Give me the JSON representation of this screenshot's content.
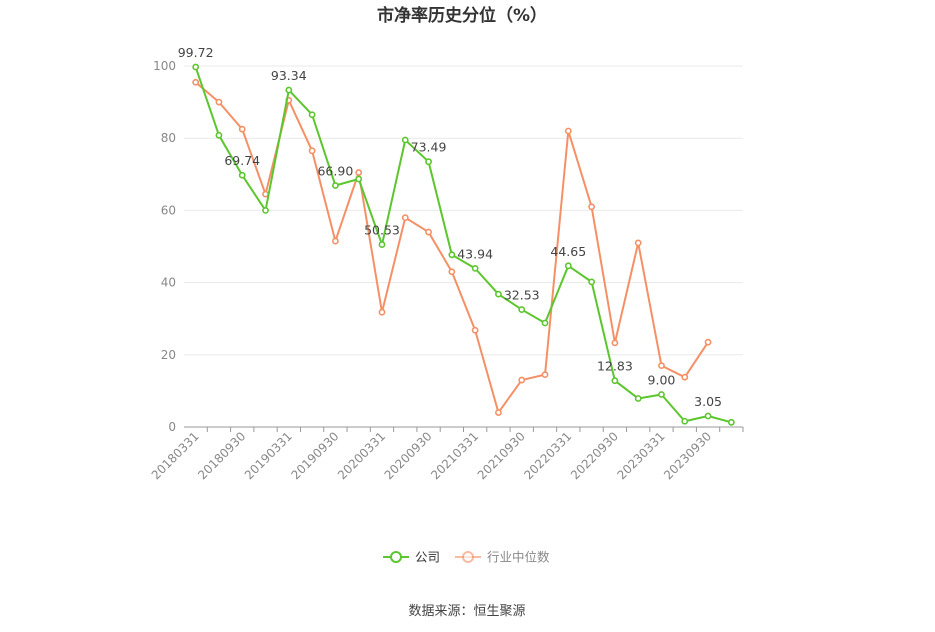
{
  "chart_data": {
    "type": "line",
    "title": "市净率历史分位（%）",
    "source": "数据来源：恒生聚源",
    "ylim": [
      0,
      100
    ],
    "yticks": [
      0,
      20,
      40,
      60,
      80,
      100
    ],
    "x": [
      "20180331",
      "20180630",
      "20180930",
      "20181231",
      "20190331",
      "20190630",
      "20190930",
      "20191231",
      "20200331",
      "20200630",
      "20200930",
      "20201231",
      "20210331",
      "20210630",
      "20210930",
      "20211231",
      "20220331",
      "20220630",
      "20220930",
      "20221231",
      "20230331",
      "20230630",
      "20230930",
      "20231231"
    ],
    "xtick_labels": [
      "20180331",
      "20180930",
      "20190331",
      "20190930",
      "20200331",
      "20200930",
      "20210331",
      "20210930",
      "20220331",
      "20220930",
      "20230331",
      "20230930"
    ],
    "grid": true,
    "legend_position": "bottom-center",
    "series": [
      {
        "name": "公司",
        "color": "#5cc62e",
        "values": [
          99.72,
          80.8,
          69.74,
          60.0,
          93.34,
          86.5,
          66.9,
          68.7,
          50.53,
          79.5,
          73.49,
          47.7,
          43.94,
          36.8,
          32.53,
          28.8,
          44.65,
          40.2,
          12.83,
          7.9,
          9.0,
          1.6,
          3.05,
          1.3
        ],
        "labels": {
          "0": "99.72",
          "2": "69.74",
          "4": "93.34",
          "6": "66.90",
          "8": "50.53",
          "10": "73.49",
          "12": "43.94",
          "14": "32.53",
          "16": "44.65",
          "18": "12.83",
          "20": "9.00",
          "22": "3.05"
        }
      },
      {
        "name": "行业中位数",
        "color": "#f59066",
        "values": [
          95.5,
          90.0,
          82.5,
          64.5,
          90.5,
          76.5,
          51.5,
          70.5,
          31.8,
          58.0,
          54.0,
          43.0,
          26.8,
          4.0,
          13.0,
          14.5,
          82.0,
          61.0,
          23.3,
          51.0,
          17.0,
          13.8,
          23.5,
          null
        ]
      }
    ]
  }
}
